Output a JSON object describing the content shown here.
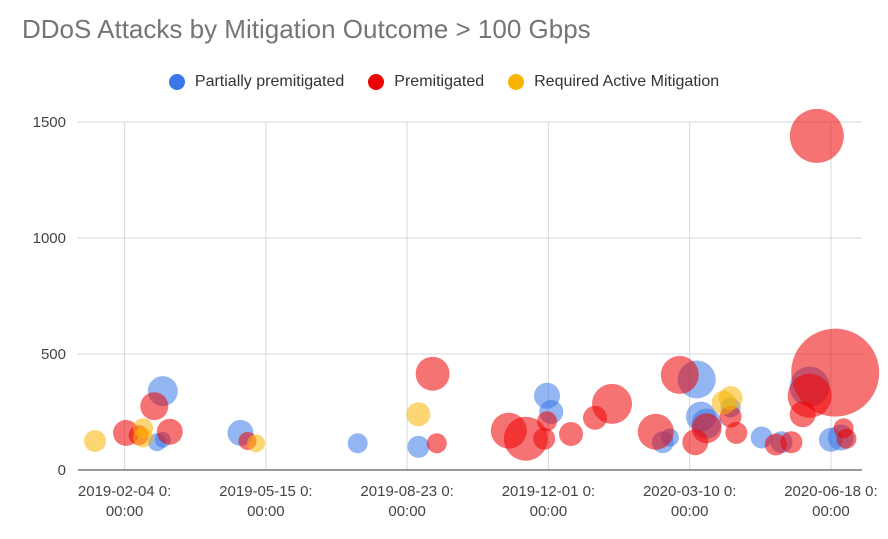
{
  "chart_data": {
    "type": "scatter",
    "subtype": "bubble",
    "title": "DDoS Attacks by Mitigation Outcome > 100 Gbps",
    "xlabel": "",
    "ylabel": "",
    "legend_position": "top",
    "x_axis": {
      "type": "date",
      "ticks": [
        "2019-02-04",
        "2019-05-15",
        "2019-08-23",
        "2019-12-01",
        "2020-03-10",
        "2020-06-18"
      ],
      "tick_labels": [
        [
          "2019-02-04 0:",
          "00:00"
        ],
        [
          "2019-05-15 0:",
          "00:00"
        ],
        [
          "2019-08-23 0:",
          "00:00"
        ],
        [
          "2019-12-01 0:",
          "00:00"
        ],
        [
          "2020-03-10 0:",
          "00:00"
        ],
        [
          "2020-06-18 0:",
          "00:00"
        ]
      ],
      "range": [
        "2019-01-02",
        "2020-07-10"
      ]
    },
    "y_axis": {
      "ticks": [
        0,
        500,
        1000,
        1500
      ],
      "range": [
        0,
        1500
      ]
    },
    "grid": true,
    "series": [
      {
        "name": "Partially premitigated",
        "color": "#3b78e7",
        "points": [
          {
            "date": "2019-03-03",
            "y": 340,
            "size": 30
          },
          {
            "date": "2019-02-27",
            "y": 120,
            "size": 18
          },
          {
            "date": "2019-03-03",
            "y": 130,
            "size": 16
          },
          {
            "date": "2019-04-27",
            "y": 160,
            "size": 26
          },
          {
            "date": "2019-07-19",
            "y": 115,
            "size": 20
          },
          {
            "date": "2019-08-31",
            "y": 100,
            "size": 22
          },
          {
            "date": "2019-11-30",
            "y": 320,
            "size": 26
          },
          {
            "date": "2019-12-03",
            "y": 250,
            "size": 24
          },
          {
            "date": "2020-02-20",
            "y": 120,
            "size": 22
          },
          {
            "date": "2020-02-25",
            "y": 140,
            "size": 18
          },
          {
            "date": "2020-03-15",
            "y": 390,
            "size": 38
          },
          {
            "date": "2020-03-18",
            "y": 230,
            "size": 30
          },
          {
            "date": "2020-03-22",
            "y": 200,
            "size": 30
          },
          {
            "date": "2020-04-08",
            "y": 270,
            "size": 20
          },
          {
            "date": "2020-04-30",
            "y": 140,
            "size": 22
          },
          {
            "date": "2020-05-14",
            "y": 120,
            "size": 22
          },
          {
            "date": "2020-06-03",
            "y": 360,
            "size": 40
          },
          {
            "date": "2020-06-18",
            "y": 130,
            "size": 24
          },
          {
            "date": "2020-06-25",
            "y": 140,
            "size": 26
          }
        ]
      },
      {
        "name": "Premitigated",
        "color": "#ee0000",
        "points": [
          {
            "date": "2019-02-05",
            "y": 160,
            "size": 26
          },
          {
            "date": "2019-02-14",
            "y": 150,
            "size": 20
          },
          {
            "date": "2019-02-25",
            "y": 275,
            "size": 28
          },
          {
            "date": "2019-03-08",
            "y": 165,
            "size": 26
          },
          {
            "date": "2019-05-02",
            "y": 125,
            "size": 18
          },
          {
            "date": "2019-09-10",
            "y": 415,
            "size": 34
          },
          {
            "date": "2019-09-13",
            "y": 115,
            "size": 20
          },
          {
            "date": "2019-11-03",
            "y": 170,
            "size": 36
          },
          {
            "date": "2019-11-15",
            "y": 135,
            "size": 44
          },
          {
            "date": "2019-11-28",
            "y": 135,
            "size": 22
          },
          {
            "date": "2019-11-30",
            "y": 210,
            "size": 20
          },
          {
            "date": "2019-12-17",
            "y": 155,
            "size": 24
          },
          {
            "date": "2020-01-03",
            "y": 225,
            "size": 24
          },
          {
            "date": "2020-01-15",
            "y": 285,
            "size": 40
          },
          {
            "date": "2020-02-15",
            "y": 165,
            "size": 36
          },
          {
            "date": "2020-03-03",
            "y": 410,
            "size": 38
          },
          {
            "date": "2020-03-14",
            "y": 120,
            "size": 26
          },
          {
            "date": "2020-03-22",
            "y": 180,
            "size": 30
          },
          {
            "date": "2020-04-08",
            "y": 230,
            "size": 22
          },
          {
            "date": "2020-04-12",
            "y": 160,
            "size": 22
          },
          {
            "date": "2020-05-10",
            "y": 110,
            "size": 22
          },
          {
            "date": "2020-05-21",
            "y": 120,
            "size": 22
          },
          {
            "date": "2020-05-29",
            "y": 240,
            "size": 26
          },
          {
            "date": "2020-06-03",
            "y": 320,
            "size": 44
          },
          {
            "date": "2020-06-08",
            "y": 1440,
            "size": 54
          },
          {
            "date": "2020-06-21",
            "y": 420,
            "size": 88
          },
          {
            "date": "2020-06-27",
            "y": 180,
            "size": 20
          },
          {
            "date": "2020-06-29",
            "y": 135,
            "size": 20
          }
        ]
      },
      {
        "name": "Required Active Mitigation",
        "color": "#f9b400",
        "points": [
          {
            "date": "2019-01-14",
            "y": 125,
            "size": 22
          },
          {
            "date": "2019-02-17",
            "y": 180,
            "size": 20
          },
          {
            "date": "2019-02-17",
            "y": 140,
            "size": 20
          },
          {
            "date": "2019-05-08",
            "y": 115,
            "size": 18
          },
          {
            "date": "2019-08-31",
            "y": 240,
            "size": 24
          },
          {
            "date": "2020-04-03",
            "y": 290,
            "size": 24
          },
          {
            "date": "2020-04-08",
            "y": 310,
            "size": 24
          }
        ]
      }
    ]
  }
}
